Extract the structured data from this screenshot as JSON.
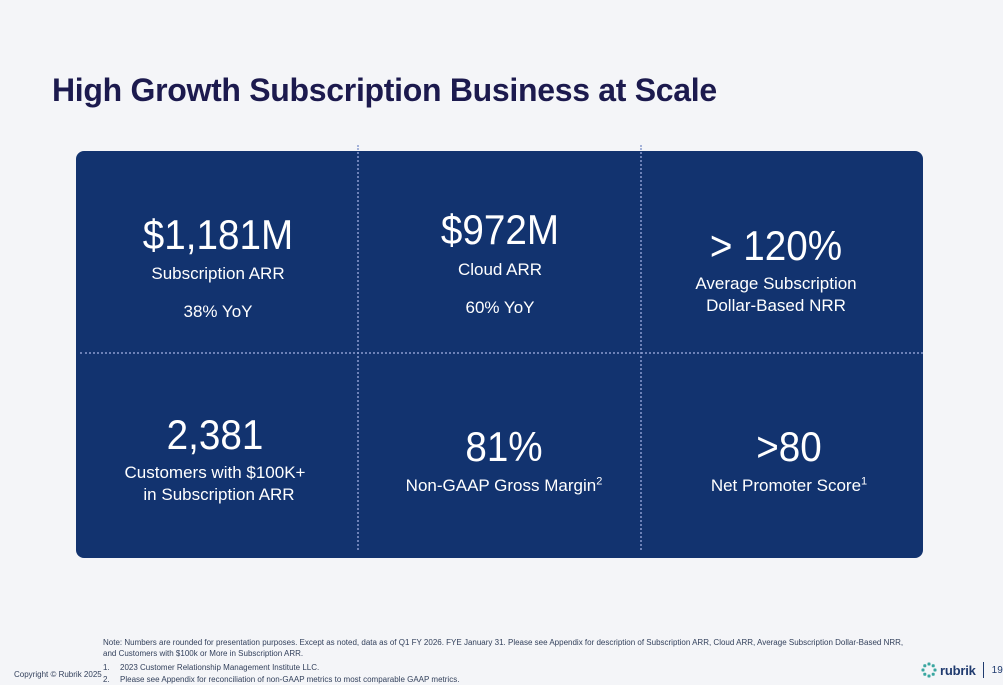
{
  "slide": {
    "title": "High Growth Subscription Business at Scale"
  },
  "metrics": {
    "subscription_arr": {
      "value": "$1,181M",
      "label": "Subscription ARR",
      "growth": "38% YoY"
    },
    "cloud_arr": {
      "value": "$972M",
      "label": "Cloud ARR",
      "growth": "60% YoY"
    },
    "nrr": {
      "value": "> 120%",
      "label_line1": "Average Subscription",
      "label_line2": "Dollar-Based NRR"
    },
    "customers": {
      "value": "2,381",
      "label_line1": "Customers with $100K+",
      "label_line2": "in Subscription ARR"
    },
    "gross_margin": {
      "value": "81%",
      "label": "Non-GAAP Gross Margin",
      "footnote_ref": "2"
    },
    "nps": {
      "value": ">80",
      "label": "Net Promoter Score",
      "footnote_ref": "1"
    }
  },
  "footer": {
    "note": "Note: Numbers are rounded for presentation purposes. Except as noted, data as of Q1 FY 2026. FYE January 31. Please see Appendix for description of Subscription ARR, Cloud ARR, Average Subscription Dollar-Based NRR, and Customers with $100k or More in Subscription ARR.",
    "footnotes": [
      {
        "num": "1.",
        "text": "2023 Customer Relationship Management Institute LLC."
      },
      {
        "num": "2.",
        "text": "Please see Appendix for reconciliation of non-GAAP metrics to most comparable GAAP metrics."
      }
    ],
    "copyright": "Copyright © Rubrik 2025",
    "brand": "rubrik",
    "page_number": "19"
  },
  "colors": {
    "panel": "#12336f",
    "title": "#1c1a4e",
    "background": "#f4f5f8"
  }
}
